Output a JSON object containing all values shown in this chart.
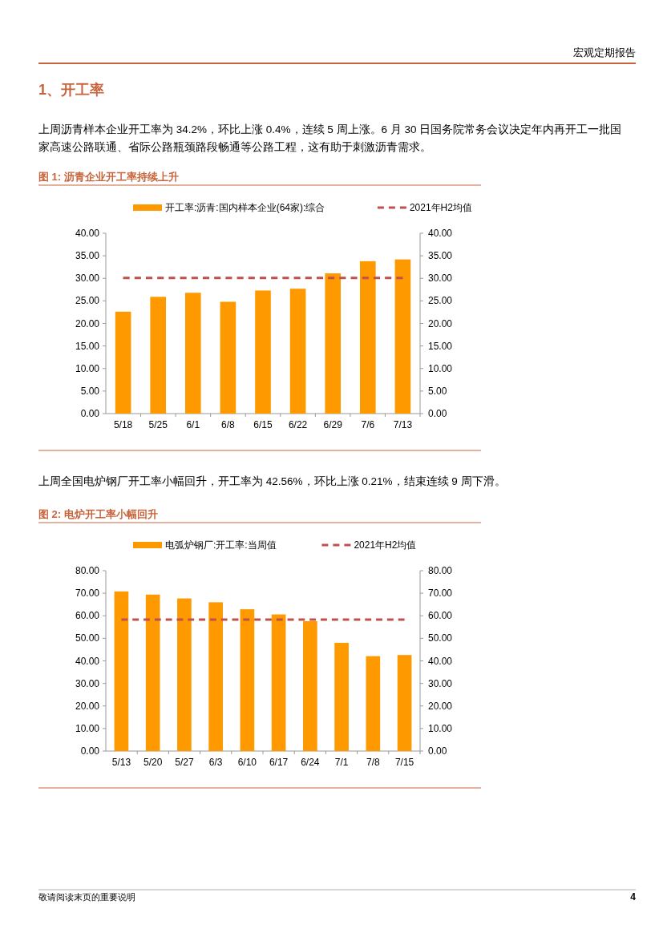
{
  "chart_data": [
    {
      "type": "bar",
      "title": "图 1: 沥青企业开工率持续上升",
      "annotations": [
        "宏观定期报告",
        "1、开工率",
        "上周沥青样本企业开工率为 34.2%，环比上涨 0.4%，连续 5 周上涨。6 月 30 日国务院常务会议决定年内再开工一批国家高速公路联通、省际公路瓶颈路段畅通等公路工程，这有助于刺激沥青需求。"
      ],
      "categories": [
        "5/18",
        "5/25",
        "6/1",
        "6/8",
        "6/15",
        "6/22",
        "6/29",
        "7/6",
        "7/13"
      ],
      "series": [
        {
          "name": "开工率:沥青:国内样本企业(64家):综合",
          "color": "#ff9900",
          "values": [
            22.6,
            25.9,
            26.8,
            24.8,
            27.3,
            27.7,
            31.1,
            33.8,
            34.2
          ]
        },
        {
          "name": "2021年H2均值",
          "type": "line",
          "color": "#c0504d",
          "line_style": "dashed",
          "values": [
            30.1,
            30.1,
            30.1,
            30.1,
            30.1,
            30.1,
            30.1,
            30.1,
            30.1
          ]
        }
      ],
      "ylim": [
        0,
        40
      ],
      "yticks": [
        {
          "value": 0,
          "label": "0.00"
        },
        {
          "value": 5,
          "label": "5.00"
        },
        {
          "value": 10,
          "label": "10.00"
        },
        {
          "value": 15,
          "label": "15.00"
        },
        {
          "value": 20,
          "label": "20.00"
        },
        {
          "value": 25,
          "label": "25.00"
        },
        {
          "value": 30,
          "label": "30.00"
        },
        {
          "value": 35,
          "label": "35.00"
        },
        {
          "value": 40,
          "label": "40.00"
        }
      ],
      "y2lim": [
        0,
        40
      ],
      "y2ticks": [
        {
          "value": 0,
          "label": "0.00"
        },
        {
          "value": 5,
          "label": "5.00"
        },
        {
          "value": 10,
          "label": "10.00"
        },
        {
          "value": 15,
          "label": "15.00"
        },
        {
          "value": 20,
          "label": "20.00"
        },
        {
          "value": 25,
          "label": "25.00"
        },
        {
          "value": 30,
          "label": "30.00"
        },
        {
          "value": 35,
          "label": "35.00"
        },
        {
          "value": 40,
          "label": "40.00"
        }
      ],
      "legend": "top"
    },
    {
      "type": "bar",
      "title": "图 2: 电炉开工率小幅回升",
      "annotations": [
        "上周全国电炉钢厂开工率小幅回升，开工率为 42.56%，环比上涨 0.21%，结束连续 9 周下滑。",
        "敬请阅读末页的重要说明",
        "4"
      ],
      "categories": [
        "5/13",
        "5/20",
        "5/27",
        "6/3",
        "6/10",
        "6/17",
        "6/24",
        "7/1",
        "7/8",
        "7/15"
      ],
      "series": [
        {
          "name": "电弧炉钢厂:开工率:当周值",
          "color": "#ff9900",
          "values": [
            70.8,
            69.4,
            67.7,
            66.0,
            62.9,
            60.6,
            57.6,
            48.0,
            42.1,
            42.6
          ]
        },
        {
          "name": "2021年H2均值",
          "type": "line",
          "color": "#c0504d",
          "line_style": "dashed",
          "values": [
            58.3,
            58.3,
            58.3,
            58.3,
            58.3,
            58.3,
            58.3,
            58.3,
            58.3,
            58.3
          ]
        }
      ],
      "ylim": [
        0,
        80
      ],
      "yticks": [
        {
          "value": 0,
          "label": "0.00"
        },
        {
          "value": 10,
          "label": "10.00"
        },
        {
          "value": 20,
          "label": "20.00"
        },
        {
          "value": 30,
          "label": "30.00"
        },
        {
          "value": 40,
          "label": "40.00"
        },
        {
          "value": 50,
          "label": "50.00"
        },
        {
          "value": 60,
          "label": "60.00"
        },
        {
          "value": 70,
          "label": "70.00"
        },
        {
          "value": 80,
          "label": "80.00"
        }
      ],
      "y2lim": [
        0,
        80
      ],
      "y2ticks": [
        {
          "value": 0,
          "label": "0.00"
        },
        {
          "value": 10,
          "label": "10.00"
        },
        {
          "value": 20,
          "label": "20.00"
        },
        {
          "value": 30,
          "label": "30.00"
        },
        {
          "value": 40,
          "label": "40.00"
        },
        {
          "value": 50,
          "label": "50.00"
        },
        {
          "value": 60,
          "label": "60.00"
        },
        {
          "value": 70,
          "label": "70.00"
        },
        {
          "value": 80,
          "label": "80.00"
        }
      ],
      "legend": "top"
    }
  ]
}
